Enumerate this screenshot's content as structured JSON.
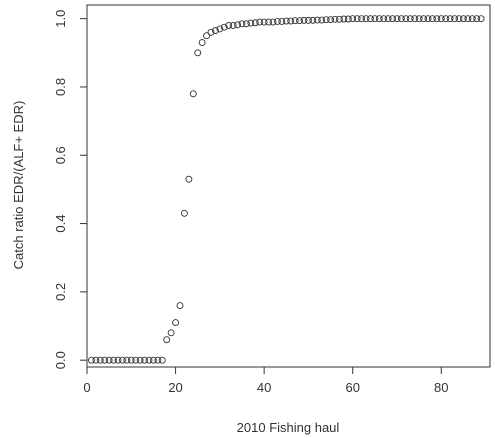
{
  "chart_data": {
    "type": "scatter",
    "title": "",
    "xlabel": "2010 Fishing haul",
    "ylabel": "Catch ratio EDR/(ALF+ EDR)",
    "xlim": [
      0,
      91
    ],
    "ylim": [
      -0.02,
      1.04
    ],
    "xticks": [
      0,
      20,
      40,
      60,
      80
    ],
    "xtick_labels": [
      "0",
      "20",
      "40",
      "60",
      "80"
    ],
    "yticks": [
      0.0,
      0.2,
      0.4,
      0.6,
      0.8,
      1.0
    ],
    "ytick_labels": [
      "0.0",
      "0.2",
      "0.4",
      "0.6",
      "0.8",
      "1.0"
    ],
    "grid": false,
    "marker": "open-circle",
    "marker_color": "#333333",
    "series": [
      {
        "x": [
          1,
          2,
          3,
          4,
          5,
          6,
          7,
          8,
          9,
          10,
          11,
          12,
          13,
          14,
          15,
          16,
          17,
          18,
          19,
          20,
          21,
          22,
          23,
          24,
          25,
          26,
          27,
          28,
          29,
          30,
          31,
          32,
          33,
          34,
          35,
          36,
          37,
          38,
          39,
          40,
          41,
          42,
          43,
          44,
          45,
          46,
          47,
          48,
          49,
          50,
          51,
          52,
          53,
          54,
          55,
          56,
          57,
          58,
          59,
          60,
          61,
          62,
          63,
          64,
          65,
          66,
          67,
          68,
          69,
          70,
          71,
          72,
          73,
          74,
          75,
          76,
          77,
          78,
          79,
          80,
          81,
          82,
          83,
          84,
          85,
          86,
          87,
          88,
          89
        ],
        "y": [
          0.0,
          0.0,
          0.0,
          0.0,
          0.0,
          0.0,
          0.0,
          0.0,
          0.0,
          0.0,
          0.0,
          0.0,
          0.0,
          0.0,
          0.0,
          0.0,
          0.0,
          0.06,
          0.08,
          0.11,
          0.16,
          0.43,
          0.53,
          0.78,
          0.9,
          0.93,
          0.95,
          0.96,
          0.965,
          0.97,
          0.975,
          0.98,
          0.98,
          0.982,
          0.985,
          0.985,
          0.987,
          0.988,
          0.99,
          0.99,
          0.99,
          0.99,
          0.992,
          0.992,
          0.993,
          0.993,
          0.994,
          0.994,
          0.995,
          0.995,
          0.995,
          0.996,
          0.996,
          0.997,
          0.997,
          0.998,
          0.998,
          0.999,
          0.999,
          1.0,
          1.0,
          1.0,
          1.0,
          1.0,
          1.0,
          1.0,
          1.0,
          1.0,
          1.0,
          1.0,
          1.0,
          1.0,
          1.0,
          1.0,
          1.0,
          1.0,
          1.0,
          1.0,
          1.0,
          1.0,
          1.0,
          1.0,
          1.0,
          1.0,
          1.0,
          1.0,
          1.0,
          1.0,
          1.0
        ]
      }
    ]
  }
}
